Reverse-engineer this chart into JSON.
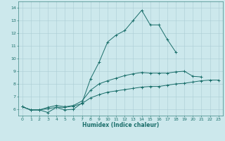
{
  "xlabel": "Humidex (Indice chaleur)",
  "bg_color": "#cce8ec",
  "grid_color": "#aaccd4",
  "line_color": "#1a6e6a",
  "xlim": [
    -0.5,
    23.5
  ],
  "ylim": [
    5.5,
    14.5
  ],
  "xticks": [
    0,
    1,
    2,
    3,
    4,
    5,
    6,
    7,
    8,
    9,
    10,
    11,
    12,
    13,
    14,
    15,
    16,
    17,
    18,
    19,
    20,
    21,
    22,
    23
  ],
  "yticks": [
    6,
    7,
    8,
    9,
    10,
    11,
    12,
    13,
    14
  ],
  "line1_x": [
    0,
    1,
    2,
    3,
    4,
    5,
    6,
    7,
    8,
    9,
    10,
    11,
    12,
    13,
    14,
    15,
    16,
    17,
    18
  ],
  "line1_y": [
    6.2,
    5.95,
    5.95,
    5.75,
    6.15,
    5.95,
    6.0,
    6.5,
    8.4,
    9.7,
    11.3,
    11.85,
    12.2,
    13.0,
    13.8,
    12.65,
    12.65,
    11.5,
    10.5
  ],
  "line2_x": [
    0,
    1,
    2,
    3,
    4,
    5,
    6,
    7,
    8,
    9,
    10,
    11,
    12,
    13,
    14,
    15,
    16,
    17,
    18,
    19,
    20,
    21
  ],
  "line2_y": [
    6.2,
    5.95,
    5.95,
    6.15,
    6.3,
    6.2,
    6.3,
    6.65,
    7.5,
    8.0,
    8.25,
    8.45,
    8.65,
    8.8,
    8.9,
    8.85,
    8.85,
    8.85,
    8.95,
    9.0,
    8.6,
    8.55
  ],
  "line3_x": [
    0,
    1,
    2,
    3,
    4,
    5,
    6,
    7,
    8,
    9,
    10,
    11,
    12,
    13,
    14,
    15,
    16,
    17,
    18,
    19,
    20,
    21,
    22,
    23
  ],
  "line3_y": [
    6.2,
    5.95,
    5.95,
    6.05,
    6.15,
    6.15,
    6.25,
    6.45,
    6.9,
    7.15,
    7.35,
    7.45,
    7.55,
    7.65,
    7.75,
    7.8,
    7.8,
    7.9,
    8.0,
    8.05,
    8.15,
    8.25,
    8.3,
    8.3
  ]
}
